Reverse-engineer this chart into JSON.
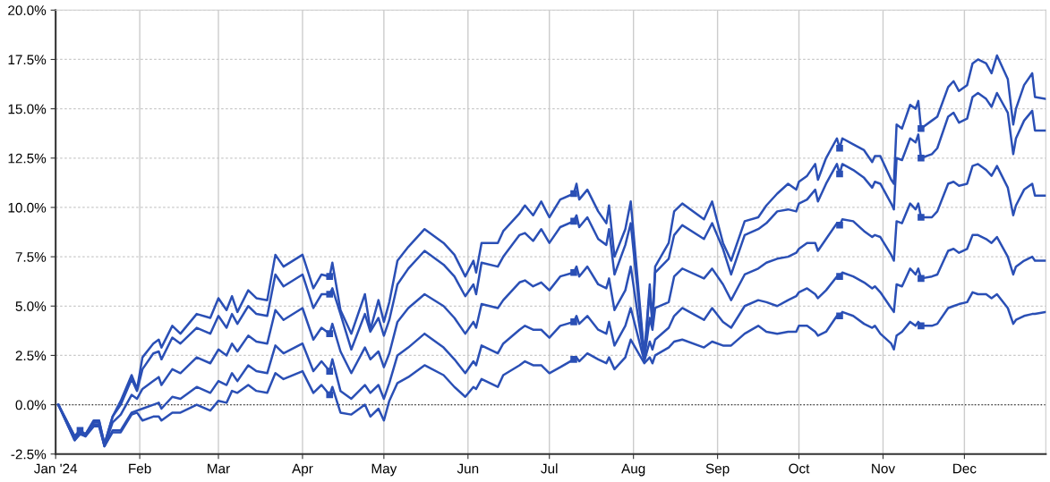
{
  "chart_data": {
    "type": "line",
    "x": [
      "2024-01-02",
      "2024-01-08",
      "2024-01-10",
      "2024-01-12",
      "2024-01-15",
      "2024-01-17",
      "2024-01-19",
      "2024-01-22",
      "2024-01-25",
      "2024-01-29",
      "2024-01-31",
      "2024-02-02",
      "2024-02-06",
      "2024-02-08",
      "2024-02-09",
      "2024-02-13",
      "2024-02-16",
      "2024-02-22",
      "2024-02-27",
      "2024-03-01",
      "2024-03-04",
      "2024-03-06",
      "2024-03-08",
      "2024-03-12",
      "2024-03-15",
      "2024-03-19",
      "2024-03-22",
      "2024-03-25",
      "2024-04-01",
      "2024-04-05",
      "2024-04-08",
      "2024-04-11",
      "2024-04-12",
      "2024-04-15",
      "2024-04-19",
      "2024-04-24",
      "2024-04-26",
      "2024-04-29",
      "2024-05-01",
      "2024-05-03",
      "2024-05-06",
      "2024-05-10",
      "2024-05-16",
      "2024-05-23",
      "2024-05-27",
      "2024-05-31",
      "2024-06-03",
      "2024-06-04",
      "2024-06-06",
      "2024-06-12",
      "2024-06-14",
      "2024-06-20",
      "2024-06-22",
      "2024-06-25",
      "2024-06-28",
      "2024-07-01",
      "2024-07-05",
      "2024-07-10",
      "2024-07-11",
      "2024-07-12",
      "2024-07-15",
      "2024-07-19",
      "2024-07-22",
      "2024-07-23",
      "2024-07-25",
      "2024-07-29",
      "2024-07-31",
      "2024-08-05",
      "2024-08-07",
      "2024-08-08",
      "2024-08-09",
      "2024-08-14",
      "2024-08-16",
      "2024-08-19",
      "2024-08-27",
      "2024-08-30",
      "2024-09-03",
      "2024-09-06",
      "2024-09-11",
      "2024-09-16",
      "2024-09-19",
      "2024-09-23",
      "2024-09-27",
      "2024-09-30",
      "2024-10-01",
      "2024-10-04",
      "2024-10-07",
      "2024-10-08",
      "2024-10-11",
      "2024-10-15",
      "2024-10-16",
      "2024-10-17",
      "2024-10-21",
      "2024-10-25",
      "2024-10-28",
      "2024-10-29",
      "2024-10-31",
      "2024-11-04",
      "2024-11-05",
      "2024-11-06",
      "2024-11-08",
      "2024-11-11",
      "2024-11-13",
      "2024-11-14",
      "2024-11-15",
      "2024-11-19",
      "2024-11-21",
      "2024-11-25",
      "2024-11-27",
      "2024-11-29",
      "2024-12-02",
      "2024-12-04",
      "2024-12-06",
      "2024-12-09",
      "2024-12-11",
      "2024-12-13",
      "2024-12-17",
      "2024-12-19",
      "2024-12-20",
      "2024-12-23",
      "2024-12-26",
      "2024-12-27",
      "2024-12-31"
    ],
    "series": [
      {
        "color": "#2a4fb5",
        "values": [
          0,
          -1.6,
          -1.3,
          -1.5,
          -0.8,
          -0.8,
          -2.0,
          -0.6,
          0.2,
          1.5,
          0.8,
          2.4,
          3.1,
          3.3,
          2.9,
          4.0,
          3.6,
          4.6,
          4.4,
          5.4,
          4.8,
          5.5,
          4.7,
          5.8,
          5.4,
          5.3,
          7.6,
          7.0,
          7.6,
          5.9,
          6.6,
          6.5,
          7.2,
          4.8,
          3.6,
          5.6,
          3.8,
          5.3,
          4.2,
          5.2,
          7.3,
          8.0,
          8.9,
          8.2,
          7.6,
          6.5,
          7.3,
          6.7,
          8.2,
          8.2,
          8.8,
          9.7,
          10.1,
          9.6,
          10.3,
          9.5,
          10.4,
          10.7,
          11.2,
          10.4,
          10.9,
          9.8,
          9.2,
          10.1,
          7.5,
          8.9,
          10.3,
          2.5,
          6.1,
          4.2,
          7.0,
          8.2,
          9.8,
          10.2,
          9.4,
          10.3,
          8.2,
          7.3,
          9.3,
          9.5,
          10.1,
          10.7,
          11.2,
          10.9,
          11.3,
          11.6,
          12.2,
          11.4,
          12.5,
          13.5,
          13.0,
          13.5,
          13.2,
          12.9,
          12.3,
          12.6,
          12.6,
          11.4,
          11.2,
          14.2,
          14.0,
          15.2,
          15.0,
          15.4,
          14.0,
          14.4,
          14.6,
          16.1,
          16.4,
          15.9,
          16.2,
          17.3,
          17.5,
          17.3,
          16.8,
          17.7,
          16.5,
          14.2,
          15.0,
          16.2,
          16.8,
          15.6,
          15.5
        ]
      },
      {
        "color": "#2a4fb5",
        "values": [
          0,
          -1.6,
          -1.3,
          -1.5,
          -0.9,
          -0.8,
          -2.0,
          -0.6,
          0.0,
          1.3,
          0.7,
          1.8,
          2.6,
          2.7,
          2.3,
          3.4,
          3.1,
          3.9,
          3.6,
          4.5,
          3.9,
          4.6,
          4.1,
          5.0,
          4.6,
          4.5,
          6.6,
          6.0,
          6.6,
          4.9,
          5.6,
          5.6,
          5.9,
          4.6,
          2.8,
          4.6,
          3.7,
          4.4,
          3.5,
          4.3,
          6.1,
          6.9,
          7.8,
          7.1,
          6.5,
          5.5,
          6.1,
          5.6,
          7.2,
          7.0,
          7.5,
          8.6,
          8.7,
          8.3,
          8.9,
          8.2,
          9.0,
          9.3,
          9.6,
          9.0,
          9.5,
          8.4,
          8.1,
          8.9,
          6.6,
          8.1,
          9.2,
          2.4,
          5.8,
          4.0,
          6.7,
          7.4,
          8.6,
          9.1,
          8.4,
          9.2,
          7.9,
          6.6,
          8.6,
          8.9,
          9.2,
          9.8,
          9.9,
          9.8,
          10.2,
          10.4,
          10.9,
          10.3,
          11.2,
          12.2,
          11.7,
          12.2,
          11.9,
          11.5,
          11.0,
          11.3,
          11.2,
          10.2,
          9.9,
          12.5,
          12.4,
          13.5,
          13.3,
          13.7,
          12.5,
          12.7,
          13.0,
          14.6,
          14.8,
          14.3,
          14.5,
          15.6,
          15.8,
          15.5,
          15.1,
          15.8,
          14.8,
          12.7,
          13.5,
          14.4,
          14.9,
          13.9,
          13.9
        ]
      },
      {
        "color": "#2a4fb5",
        "values": [
          0,
          -1.7,
          -1.4,
          -1.5,
          -0.9,
          -0.9,
          -2.1,
          -0.9,
          -0.5,
          0.5,
          0.3,
          0.8,
          1.2,
          1.4,
          1.0,
          1.8,
          1.6,
          2.4,
          2.1,
          2.8,
          2.5,
          3.1,
          2.7,
          3.5,
          3.2,
          3.1,
          4.8,
          4.3,
          4.9,
          3.3,
          3.9,
          3.6,
          4.1,
          2.7,
          1.6,
          2.9,
          2.3,
          2.7,
          1.9,
          2.6,
          4.2,
          4.9,
          5.6,
          5.0,
          4.4,
          3.6,
          4.2,
          3.9,
          5.1,
          4.9,
          5.3,
          6.2,
          6.3,
          6.0,
          6.2,
          5.8,
          6.5,
          6.7,
          7.0,
          6.5,
          7.0,
          6.1,
          5.9,
          6.4,
          4.8,
          5.8,
          7.0,
          2.3,
          4.4,
          3.8,
          4.9,
          5.2,
          6.5,
          6.9,
          6.4,
          6.9,
          6.1,
          5.3,
          6.6,
          6.9,
          7.2,
          7.4,
          7.5,
          7.7,
          7.9,
          8.2,
          8.2,
          7.8,
          8.4,
          9.2,
          9.1,
          9.4,
          9.3,
          8.8,
          8.5,
          8.6,
          8.5,
          7.6,
          7.3,
          9.3,
          9.2,
          10.2,
          9.9,
          10.2,
          9.5,
          9.5,
          9.8,
          11.2,
          11.3,
          11.1,
          11.2,
          12.1,
          12.2,
          11.9,
          11.6,
          12.1,
          11.0,
          9.6,
          10.1,
          10.9,
          11.2,
          10.6,
          10.6
        ]
      },
      {
        "color": "#2a4fb5",
        "values": [
          0,
          -1.8,
          -1.4,
          -1.6,
          -1.0,
          -1.0,
          -2.1,
          -1.3,
          -1.3,
          -0.4,
          -0.3,
          -0.2,
          0.0,
          0.1,
          -0.2,
          0.4,
          0.3,
          0.9,
          0.6,
          1.2,
          1.0,
          1.6,
          1.2,
          2.0,
          1.7,
          1.6,
          3.0,
          2.6,
          3.1,
          1.7,
          2.2,
          1.7,
          2.3,
          0.7,
          0.3,
          1.0,
          0.6,
          1.0,
          0.3,
          1.1,
          2.5,
          2.9,
          3.6,
          2.9,
          2.3,
          1.6,
          2.2,
          2.0,
          3.0,
          2.6,
          3.1,
          3.8,
          4.0,
          3.8,
          3.8,
          3.4,
          4.0,
          4.2,
          4.5,
          4.1,
          4.5,
          3.8,
          3.6,
          4.2,
          3.0,
          4.0,
          4.9,
          2.2,
          3.2,
          2.8,
          3.3,
          3.9,
          4.5,
          4.9,
          4.3,
          4.9,
          4.2,
          3.9,
          5.0,
          5.3,
          5.2,
          5.0,
          5.3,
          5.5,
          5.7,
          5.9,
          5.6,
          5.4,
          5.8,
          6.5,
          6.5,
          6.7,
          6.5,
          6.2,
          5.9,
          6.0,
          5.7,
          4.9,
          4.7,
          6.1,
          6.0,
          6.9,
          6.6,
          6.9,
          6.4,
          6.5,
          6.6,
          7.8,
          7.9,
          7.7,
          7.9,
          8.6,
          8.6,
          8.4,
          8.2,
          8.5,
          7.5,
          6.6,
          7.0,
          7.3,
          7.5,
          7.3,
          7.3
        ]
      },
      {
        "color": "#2a4fb5",
        "values": [
          0,
          -1.8,
          -1.5,
          -1.6,
          -1.1,
          -1.1,
          -2.1,
          -1.4,
          -1.4,
          -0.5,
          -0.4,
          -0.8,
          -0.6,
          -0.6,
          -0.8,
          -0.4,
          -0.4,
          0.0,
          -0.3,
          0.2,
          0.1,
          0.7,
          0.6,
          1.0,
          0.7,
          0.6,
          1.6,
          1.3,
          1.7,
          0.6,
          1.0,
          0.5,
          0.9,
          -0.4,
          -0.5,
          0.0,
          -0.6,
          -0.2,
          -0.8,
          0.2,
          1.1,
          1.4,
          2.0,
          1.5,
          0.9,
          0.4,
          0.9,
          0.8,
          1.3,
          0.9,
          1.5,
          2.0,
          2.2,
          2.0,
          2.0,
          1.6,
          1.9,
          2.3,
          2.4,
          2.2,
          2.6,
          2.3,
          2.1,
          2.4,
          1.8,
          2.4,
          3.3,
          2.1,
          2.4,
          2.1,
          2.5,
          2.9,
          3.2,
          3.3,
          2.9,
          3.2,
          3.0,
          3.0,
          3.6,
          4.0,
          3.7,
          3.6,
          3.7,
          3.7,
          4.0,
          4.0,
          3.7,
          3.5,
          3.7,
          4.5,
          4.5,
          4.7,
          4.5,
          4.1,
          3.9,
          4.0,
          3.6,
          3.1,
          2.8,
          3.5,
          3.7,
          4.2,
          4.0,
          4.2,
          4.0,
          4.0,
          4.1,
          4.9,
          5.0,
          5.1,
          5.2,
          5.7,
          5.6,
          5.6,
          5.4,
          5.6,
          4.9,
          4.1,
          4.3,
          4.5,
          4.6,
          4.6,
          4.7
        ]
      },
      {
        "type": "scatter",
        "color": "#2a4fb5",
        "marker": "square",
        "x": [
          "2024-01-10",
          "2024-04-11",
          "2024-04-11",
          "2024-04-11",
          "2024-04-11",
          "2024-04-11",
          "2024-07-10",
          "2024-07-10",
          "2024-07-10",
          "2024-07-10",
          "2024-07-10",
          "2024-10-16",
          "2024-10-16",
          "2024-10-16",
          "2024-10-16",
          "2024-10-16",
          "2024-11-15",
          "2024-11-15",
          "2024-11-15",
          "2024-11-15",
          "2024-11-15"
        ],
        "values": [
          -1.3,
          6.5,
          5.6,
          3.6,
          1.7,
          0.5,
          10.7,
          9.3,
          6.7,
          4.2,
          2.3,
          13.0,
          11.7,
          9.1,
          6.5,
          4.5,
          14.0,
          12.5,
          9.5,
          6.4,
          4.0
        ]
      }
    ],
    "xlim": [
      "2024-01-01",
      "2024-12-31"
    ],
    "xticks": [
      {
        "value": "2024-01-01",
        "label": "Jan '24"
      },
      {
        "value": "2024-02-01",
        "label": "Feb"
      },
      {
        "value": "2024-03-01",
        "label": "Mar"
      },
      {
        "value": "2024-04-01",
        "label": "Apr"
      },
      {
        "value": "2024-05-01",
        "label": "May"
      },
      {
        "value": "2024-06-01",
        "label": "Jun"
      },
      {
        "value": "2024-07-01",
        "label": "Jul"
      },
      {
        "value": "2024-08-01",
        "label": "Aug"
      },
      {
        "value": "2024-09-01",
        "label": "Sep"
      },
      {
        "value": "2024-10-01",
        "label": "Oct"
      },
      {
        "value": "2024-11-01",
        "label": "Nov"
      },
      {
        "value": "2024-12-01",
        "label": "Dec"
      }
    ],
    "ylim": [
      -2.5,
      20
    ],
    "yticks": [
      {
        "value": -2.5,
        "label": "-2.5%"
      },
      {
        "value": 0,
        "label": "0.0%"
      },
      {
        "value": 2.5,
        "label": "2.5%"
      },
      {
        "value": 5,
        "label": "5.0%"
      },
      {
        "value": 7.5,
        "label": "7.5%"
      },
      {
        "value": 10,
        "label": "10.0%"
      },
      {
        "value": 12.5,
        "label": "12.5%"
      },
      {
        "value": 15,
        "label": "15.0%"
      },
      {
        "value": 17.5,
        "label": "17.5%"
      },
      {
        "value": 20,
        "label": "20.0%"
      }
    ],
    "grid": true,
    "marker": "none",
    "line_style": "solid",
    "ref_lines": [
      {
        "axis": "y",
        "value": 0,
        "color": "#333333",
        "line_style": "dotted"
      }
    ]
  }
}
